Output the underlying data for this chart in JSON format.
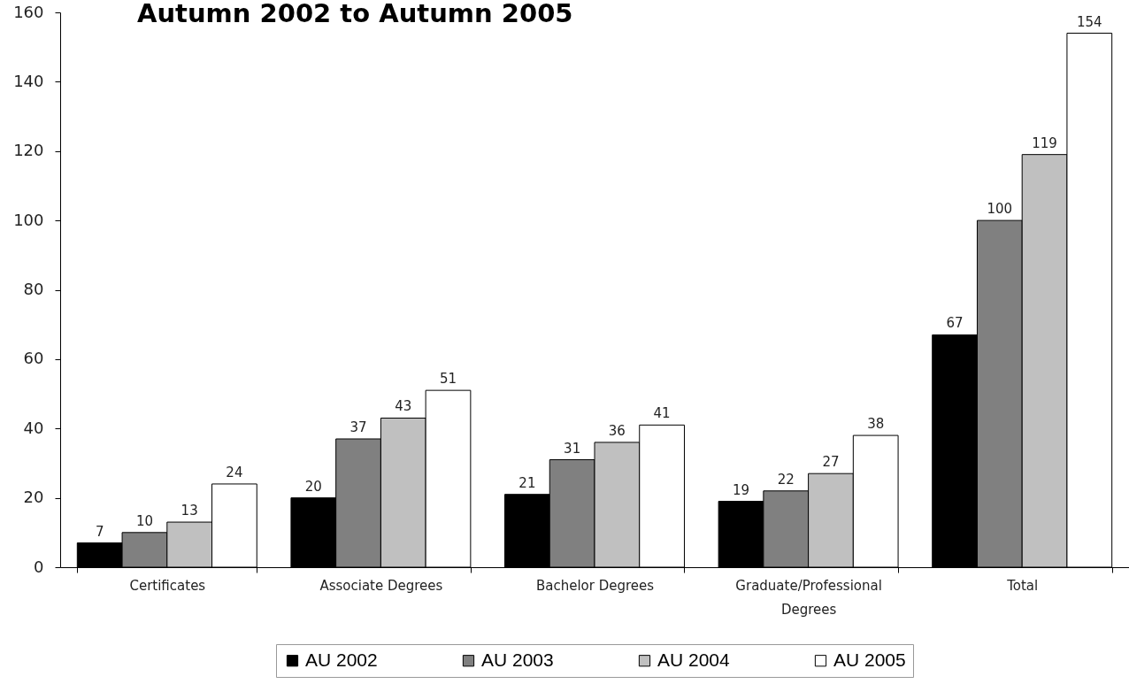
{
  "chart_data": {
    "type": "bar",
    "title": "Autumn 2002 to Autumn 2005",
    "categories": [
      "Certificates",
      "Associate Degrees",
      "Bachelor Degrees",
      "Graduate/Professional Degrees",
      "Total"
    ],
    "series": [
      {
        "name": "AU 2002",
        "color": "#000000",
        "values": [
          7,
          20,
          21,
          19,
          67
        ]
      },
      {
        "name": "AU 2003",
        "color": "#808080",
        "values": [
          10,
          37,
          31,
          22,
          100
        ]
      },
      {
        "name": "AU 2004",
        "color": "#c0c0c0",
        "values": [
          13,
          43,
          36,
          27,
          119
        ]
      },
      {
        "name": "AU 2005",
        "color": "#ffffff",
        "values": [
          24,
          51,
          41,
          38,
          154
        ]
      }
    ],
    "ylim": [
      0,
      160
    ],
    "yticks": [
      0,
      20,
      40,
      60,
      80,
      100,
      120,
      140,
      160
    ],
    "data_labels": true,
    "legend": "bottom"
  }
}
